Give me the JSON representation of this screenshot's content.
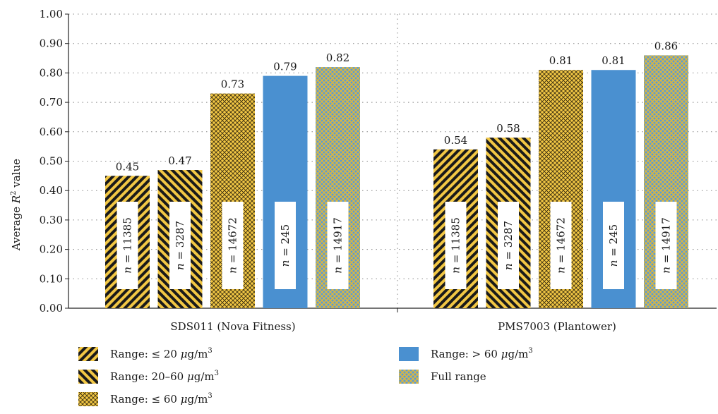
{
  "chart_data": {
    "type": "bar",
    "ylabel": "Average R² value",
    "ylabel_parts": {
      "prefix": "Average ",
      "var": "R",
      "sup": "2",
      "suffix": " value"
    },
    "ylim": [
      0,
      1.0
    ],
    "yticks": [
      "0.00",
      "0.10",
      "0.20",
      "0.30",
      "0.40",
      "0.50",
      "0.60",
      "0.70",
      "0.80",
      "0.90",
      "1.00"
    ],
    "grid": true,
    "categories": [
      "SDS011 (Nova Fitness)",
      "PMS7003 (Plantower)"
    ],
    "series": [
      {
        "name": "Range: ≤ 20 μg/m3",
        "label_parts": [
          "Range: ≤ 20 ",
          "μ",
          "g/m",
          "3"
        ],
        "pattern": "diag-right",
        "values": [
          0.45,
          0.54
        ],
        "value_labels": [
          "0.45",
          "0.54"
        ],
        "n_labels": [
          "11385",
          "11385"
        ]
      },
      {
        "name": "Range: 20–60 μg/m3",
        "label_parts": [
          "Range: 20–60 ",
          "μ",
          "g/m",
          "3"
        ],
        "pattern": "diag-left",
        "values": [
          0.47,
          0.58
        ],
        "value_labels": [
          "0.47",
          "0.58"
        ],
        "n_labels": [
          "3287",
          "3287"
        ]
      },
      {
        "name": "Range: ≤ 60 μg/m3",
        "label_parts": [
          "Range: ≤ 60 ",
          "μ",
          "g/m",
          "3"
        ],
        "pattern": "crosshatch-yellow",
        "values": [
          0.73,
          0.81
        ],
        "value_labels": [
          "0.73",
          "0.81"
        ],
        "n_labels": [
          "14672",
          "14672"
        ]
      },
      {
        "name": "Range: > 60 μg/m3",
        "label_parts": [
          "Range: > 60 ",
          "μ",
          "g/m",
          "3"
        ],
        "pattern": "solid-blue",
        "values": [
          0.79,
          0.81
        ],
        "value_labels": [
          "0.79",
          "0.81"
        ],
        "n_labels": [
          "245",
          "245"
        ]
      },
      {
        "name": "Full range",
        "label_parts": [
          "Full range",
          "",
          "",
          ""
        ],
        "pattern": "crosshatch-blue",
        "values": [
          0.82,
          0.86
        ],
        "value_labels": [
          "0.82",
          "0.86"
        ],
        "n_labels": [
          "14917",
          "14917"
        ]
      }
    ],
    "n_prefix": "n",
    "n_equals": " = ",
    "legend_position": "bottom",
    "colors": {
      "yellow": "#f2c744",
      "blue": "#4a90d0",
      "stripe": "#1a1a1a",
      "cross_blue": "#e0b83a"
    }
  }
}
